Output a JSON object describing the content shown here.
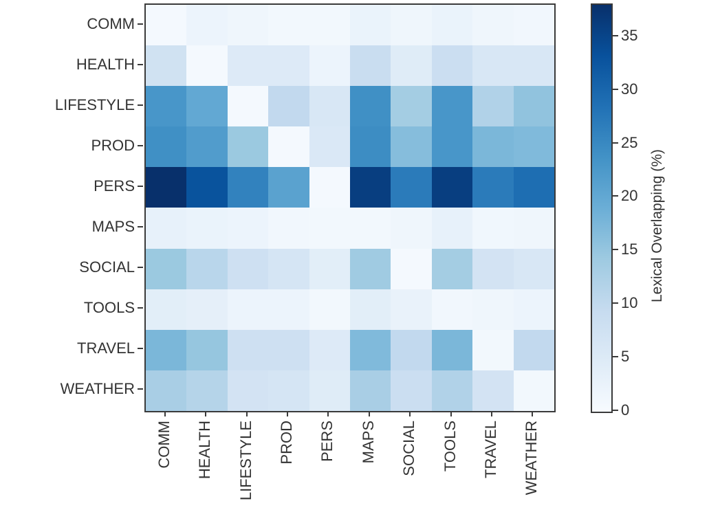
{
  "chart_data": {
    "type": "heatmap",
    "title": "",
    "xlabel": "",
    "ylabel": "",
    "categories": [
      "COMM",
      "HEALTH",
      "LIFESTYLE",
      "PROD",
      "PERS",
      "MAPS",
      "SOCIAL",
      "TOOLS",
      "TRAVEL",
      "WEATHER"
    ],
    "rows": [
      [
        0.5,
        2.0,
        1.5,
        1.0,
        1.0,
        2.5,
        1.5,
        2.5,
        1.5,
        1.2
      ],
      [
        7.5,
        0.5,
        5.0,
        5.0,
        2.0,
        9.0,
        4.5,
        8.5,
        6.0,
        6.0
      ],
      [
        23.0,
        20.0,
        0.5,
        10.0,
        6.0,
        24.0,
        13.5,
        23.0,
        12.0,
        15.5
      ],
      [
        24.0,
        22.0,
        14.5,
        0.5,
        5.5,
        24.5,
        16.5,
        23.0,
        17.5,
        17.0
      ],
      [
        38.0,
        33.0,
        26.0,
        21.0,
        0.5,
        36.0,
        27.0,
        36.0,
        27.0,
        29.0
      ],
      [
        3.0,
        2.5,
        2.0,
        1.2,
        1.0,
        1.0,
        1.5,
        3.0,
        1.3,
        1.5
      ],
      [
        14.5,
        11.0,
        8.0,
        6.5,
        4.0,
        14.0,
        0.5,
        13.5,
        7.0,
        6.0
      ],
      [
        4.0,
        3.5,
        2.0,
        2.0,
        1.0,
        4.0,
        2.7,
        1.2,
        1.5,
        2.0
      ],
      [
        17.5,
        15.0,
        8.0,
        8.0,
        5.0,
        17.0,
        10.0,
        17.5,
        1.0,
        10.0
      ],
      [
        13.0,
        11.5,
        7.0,
        6.5,
        4.5,
        13.0,
        8.5,
        12.0,
        7.0,
        1.0
      ]
    ],
    "vmin": 0,
    "vmax": 38,
    "colormap": "Blues",
    "colormap_stops": [
      "#f7fbff",
      "#deebf7",
      "#c6dbef",
      "#9ecae1",
      "#6baed6",
      "#4292c6",
      "#2171b5",
      "#08519c",
      "#08306b"
    ],
    "axis_color": "#3a3a3a",
    "grid": false,
    "colorbar": {
      "label": "Lexical Overlapping (%)",
      "ticks": [
        0,
        5,
        10,
        15,
        20,
        25,
        30,
        35
      ],
      "position": "right"
    }
  }
}
